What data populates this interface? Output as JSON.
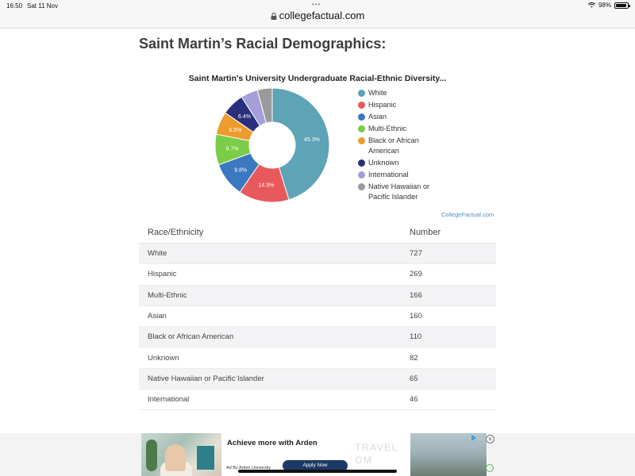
{
  "status_bar": {
    "time": "16:50",
    "date": "Sat 11 Nov",
    "battery": "98%",
    "dots": "•••"
  },
  "browser": {
    "url": "collegefactual.com"
  },
  "page": {
    "title": "Saint Martin’s Racial Demographics:"
  },
  "chart_data": {
    "type": "pie",
    "title": "Saint Martin's University Undergraduate Racial-Ethnic Diversity...",
    "credit": "CollegeFactual.com",
    "slices": [
      {
        "label": "White",
        "value": 45.3,
        "color": "#5ea3b6",
        "data_label": "45.3%"
      },
      {
        "label": "Hispanic",
        "value": 14.3,
        "color": "#e8595b",
        "data_label": "14.3%"
      },
      {
        "label": "Asian",
        "value": 9.8,
        "color": "#3a78bf",
        "data_label": "9.8%"
      },
      {
        "label": "Multi-Ethnic",
        "value": 8.7,
        "color": "#7bcc47",
        "data_label": "8.7%"
      },
      {
        "label": "Black or African American",
        "value": 6.5,
        "color": "#ee9b2e",
        "data_label": "6.5%"
      },
      {
        "label": "Unknown",
        "value": 6.4,
        "color": "#2a2f7c",
        "data_label": "6.4%"
      },
      {
        "label": "International",
        "value": 4.8,
        "color": "#a49fd8",
        "data_label": ""
      },
      {
        "label": "Native Hawaiian or Pacific Islander",
        "value": 4.2,
        "color": "#9a9a9a",
        "data_label": ""
      }
    ]
  },
  "table": {
    "headers": {
      "race": "Race/Ethnicity",
      "number": "Number"
    },
    "rows": [
      {
        "race": "White",
        "number": "727"
      },
      {
        "race": "Hispanic",
        "number": "269"
      },
      {
        "race": "Multi-Ethnic",
        "number": "166"
      },
      {
        "race": "Asian",
        "number": "160"
      },
      {
        "race": "Black or African American",
        "number": "110"
      },
      {
        "race": "Unknown",
        "number": "82"
      },
      {
        "race": "Native Hawaiian or Pacific Islander",
        "number": "65"
      },
      {
        "race": "International",
        "number": "46"
      }
    ]
  },
  "ad": {
    "headline": "Achieve more with Arden",
    "sponsor": "Ad By Arden University",
    "button": "Apply Now",
    "bg_text_1": "TRAVEL",
    "bg_text_2": "OM",
    "close": "×"
  }
}
